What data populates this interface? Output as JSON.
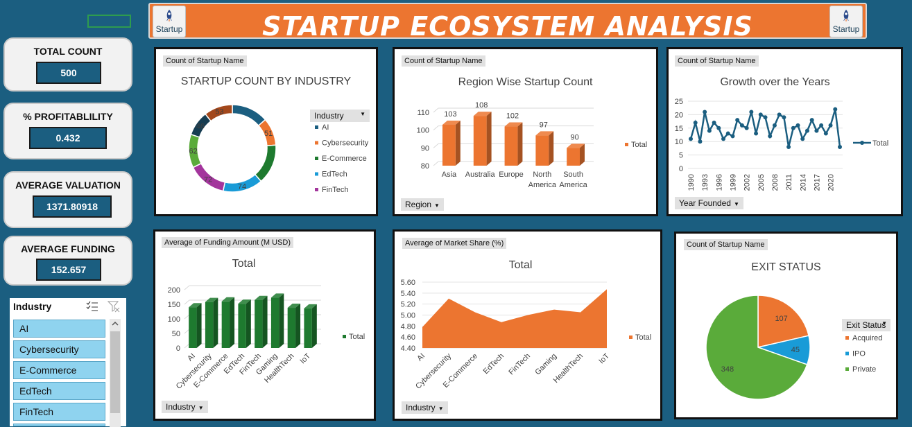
{
  "header": {
    "title": "STARTUP ECOSYSTEM ANALYSIS",
    "button_label": "Startup"
  },
  "kpis": [
    {
      "label": "TOTAL COUNT",
      "value": "500"
    },
    {
      "label": "% PROFITABLILITY",
      "value": "0.432"
    },
    {
      "label": "AVERAGE VALUATION",
      "value": "1371.80918"
    },
    {
      "label": "AVERAGE FUNDING",
      "value": "152.657"
    }
  ],
  "slicer": {
    "title": "Industry",
    "items": [
      "AI",
      "Cybersecurity",
      "E-Commerce",
      "EdTech",
      "FinTech"
    ]
  },
  "colors": {
    "background": "#1b5e80",
    "header": "#ec7530",
    "orange": "#ec7530",
    "green": "#1e7a2f",
    "navy": "#1b5e80",
    "blue": "#199bd7",
    "pie_green": "#5aab3a"
  },
  "chart_data": [
    {
      "id": "industry",
      "type": "pie",
      "tag": "Count of Startup Name",
      "title": "STARTUP COUNT BY INDUSTRY",
      "legend_title": "Industry",
      "categories": [
        "AI",
        "Cybersecurity",
        "E-Commerce",
        "EdTech",
        "FinTech",
        "Gaming",
        "HealthTech",
        "IoT"
      ],
      "values": [
        68,
        51,
        74,
        74,
        72,
        62,
        46,
        53
      ],
      "label_values": [
        "",
        "51",
        "",
        "74",
        "72",
        "62",
        "46",
        "53"
      ],
      "colors": [
        "#1b5e80",
        "#ec7530",
        "#1e7a2f",
        "#199bd7",
        "#a3359c",
        "#5aab3a",
        "#163d52",
        "#a3481c"
      ],
      "legend_shown": [
        "AI",
        "Cybersecurity",
        "E-Commerce",
        "EdTech",
        "FinTech"
      ]
    },
    {
      "id": "region",
      "type": "bar",
      "tag": "Count of Startup Name",
      "title": "Region Wise Startup Count",
      "filter": "Region",
      "legend": "Total",
      "categories": [
        "Asia",
        "Australia",
        "Europe",
        "North America",
        "South America"
      ],
      "values": [
        103,
        108,
        102,
        97,
        90
      ],
      "yticks": [
        "80",
        "90",
        "100",
        "110"
      ],
      "ylim": [
        80,
        110
      ]
    },
    {
      "id": "growth",
      "type": "line",
      "tag": "Count of Startup Name",
      "title": "Growth over the Years",
      "filter": "Year Founded",
      "legend": "Total",
      "x": [
        1990,
        1991,
        1992,
        1993,
        1994,
        1995,
        1996,
        1997,
        1998,
        1999,
        2000,
        2001,
        2002,
        2003,
        2004,
        2005,
        2006,
        2007,
        2008,
        2009,
        2010,
        2011,
        2012,
        2013,
        2014,
        2015,
        2016,
        2017,
        2018,
        2019,
        2020,
        2021,
        2022
      ],
      "values": [
        11,
        17,
        10,
        21,
        14,
        17,
        15,
        11,
        13,
        12,
        18,
        16,
        15,
        21,
        13,
        20,
        19,
        12,
        16,
        20,
        19,
        8,
        15,
        16,
        11,
        14,
        18,
        14,
        16,
        13,
        16,
        22,
        8
      ],
      "xticks": [
        "1990",
        "1993",
        "1996",
        "1999",
        "2002",
        "2005",
        "2008",
        "2011",
        "2014",
        "2017",
        "2020"
      ],
      "yticks": [
        "0",
        "5",
        "10",
        "15",
        "20",
        "25"
      ],
      "ylim": [
        0,
        25
      ]
    },
    {
      "id": "funding",
      "type": "bar",
      "tag": "Average of Funding Amount (M USD)",
      "title": "Total",
      "filter": "Industry",
      "legend": "Total",
      "categories": [
        "AI",
        "Cybersecurity",
        "E-Commerce",
        "EdTech",
        "FinTech",
        "Gaming",
        "HealthTech",
        "IoT"
      ],
      "values": [
        140,
        158,
        160,
        152,
        165,
        173,
        138,
        136
      ],
      "yticks": [
        "0",
        "50",
        "100",
        "150",
        "200"
      ],
      "ylim": [
        0,
        200
      ]
    },
    {
      "id": "market",
      "type": "area",
      "tag": "Average of Market Share (%)",
      "title": "Total",
      "filter": "Industry",
      "legend": "Total",
      "categories": [
        "AI",
        "Cybersecurity",
        "E-Commerce",
        "EdTech",
        "FinTech",
        "Gaming",
        "HealthTech",
        "IoT"
      ],
      "values": [
        4.78,
        5.3,
        5.05,
        4.87,
        5.0,
        5.1,
        5.05,
        5.47
      ],
      "yticks": [
        "4.40",
        "4.60",
        "4.80",
        "5.00",
        "5.20",
        "5.40",
        "5.60"
      ],
      "ylim": [
        4.4,
        5.6
      ]
    },
    {
      "id": "exit",
      "type": "pie",
      "tag": "Count of Startup Name",
      "title": "EXIT STATUS",
      "legend_title": "Exit Status",
      "categories": [
        "Acquired",
        "IPO",
        "Private"
      ],
      "values": [
        107,
        45,
        348
      ],
      "colors": [
        "#ec7530",
        "#199bd7",
        "#5aab3a"
      ]
    }
  ]
}
